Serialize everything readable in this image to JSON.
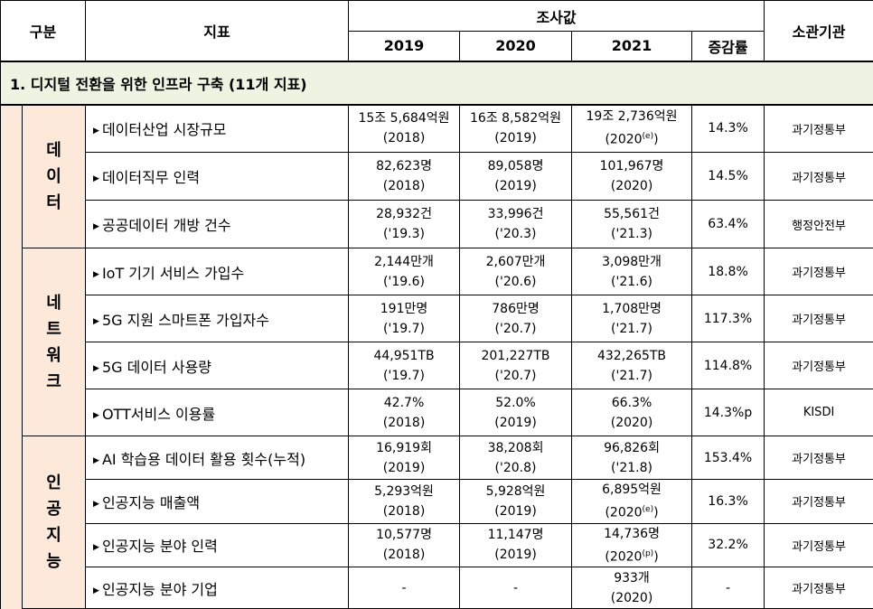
{
  "header": {
    "category": "구분",
    "indicator": "지표",
    "survey": "조사값",
    "years": [
      "2019",
      "2020",
      "2021"
    ],
    "rate": "증감률",
    "org": "소관기관"
  },
  "section": {
    "title": "1. 디지털 전환을 위한 인프라 구축 (11개 지표)"
  },
  "categories": [
    {
      "label": "데\n이\n터"
    },
    {
      "label": "네\n트\n워\n크"
    },
    {
      "label": "인\n공\n지\n능"
    }
  ],
  "rows": [
    {
      "indicator": "데이터산업 시장규모",
      "y2019": "15조 5,684억원",
      "y2019_sub": "(2018)",
      "y2020": "16조 8,582억원",
      "y2020_sub": "(2019)",
      "y2021": "19조 2,736억원",
      "y2021_sub": "(2020",
      "y2021_sup": "(e)",
      "y2021_close": ")",
      "rate": "14.3%",
      "org": "과기정통부"
    },
    {
      "indicator": "데이터직무 인력",
      "y2019": "82,623명",
      "y2019_sub": "(2018)",
      "y2020": "89,058명",
      "y2020_sub": "(2019)",
      "y2021": "101,967명",
      "y2021_sub": "(2020)",
      "rate": "14.5%",
      "org": "과기정통부"
    },
    {
      "indicator": "공공데이터 개방 건수",
      "y2019": "28,932건",
      "y2019_sub": "('19.3)",
      "y2020": "33,996건",
      "y2020_sub": "('20.3)",
      "y2021": "55,561건",
      "y2021_sub": "('21.3)",
      "rate": "63.4%",
      "org": "행정안전부"
    },
    {
      "indicator": "IoT 기기 서비스 가입수",
      "y2019": "2,144만개",
      "y2019_sub": "('19.6)",
      "y2020": "2,607만개",
      "y2020_sub": "('20.6)",
      "y2021": "3,098만개",
      "y2021_sub": "('21.6)",
      "rate": "18.8%",
      "org": "과기정통부"
    },
    {
      "indicator": "5G 지원 스마트폰 가입자수",
      "y2019": "191만명",
      "y2019_sub": "('19.7)",
      "y2020": "786만명",
      "y2020_sub": "('20.7)",
      "y2021": "1,708만명",
      "y2021_sub": "('21.7)",
      "rate": "117.3%",
      "org": "과기정통부"
    },
    {
      "indicator": "5G 데이터 사용량",
      "y2019": "44,951TB",
      "y2019_sub": "('19.7)",
      "y2020": "201,227TB",
      "y2020_sub": "('20.7)",
      "y2021": "432,265TB",
      "y2021_sub": "('21.7)",
      "rate": "114.8%",
      "org": "과기정통부"
    },
    {
      "indicator": "OTT서비스 이용률",
      "y2019": "42.7%",
      "y2019_sub": "(2018)",
      "y2020": "52.0%",
      "y2020_sub": "(2019)",
      "y2021": "66.3%",
      "y2021_sub": "(2020)",
      "rate": "14.3%p",
      "org": "KISDI"
    },
    {
      "indicator": "AI 학습용 데이터 활용 횟수(누적)",
      "y2019": "16,919회",
      "y2019_sub": "(2019)",
      "y2020": "38,208회",
      "y2020_sub": "('20.8)",
      "y2021": "96,826회",
      "y2021_sub": "('21.8)",
      "rate": "153.4%",
      "org": "과기정통부"
    },
    {
      "indicator": "인공지능 매출액",
      "y2019": "5,293억원",
      "y2019_sub": "(2018)",
      "y2020": "5,928억원",
      "y2020_sub": "(2019)",
      "y2021": "6,895억원",
      "y2021_sub": "(2020",
      "y2021_sup": "(e)",
      "y2021_close": ")",
      "rate": "16.3%",
      "org": "과기정통부"
    },
    {
      "indicator": "인공지능 분야 인력",
      "y2019": "10,577명",
      "y2019_sub": "(2018)",
      "y2020": "11,147명",
      "y2020_sub": "(2019)",
      "y2021": "14,736명",
      "y2021_sub": "(2020",
      "y2021_sup": "(p)",
      "y2021_close": ")",
      "rate": "32.2%",
      "org": "과기정통부"
    },
    {
      "indicator": "인공지능 분야 기업",
      "y2019": "-",
      "y2019_sub": "",
      "y2020": "-",
      "y2020_sub": "",
      "y2021": "933개",
      "y2021_sub": "(2020)",
      "rate": "-",
      "org": "과기정통부"
    }
  ]
}
